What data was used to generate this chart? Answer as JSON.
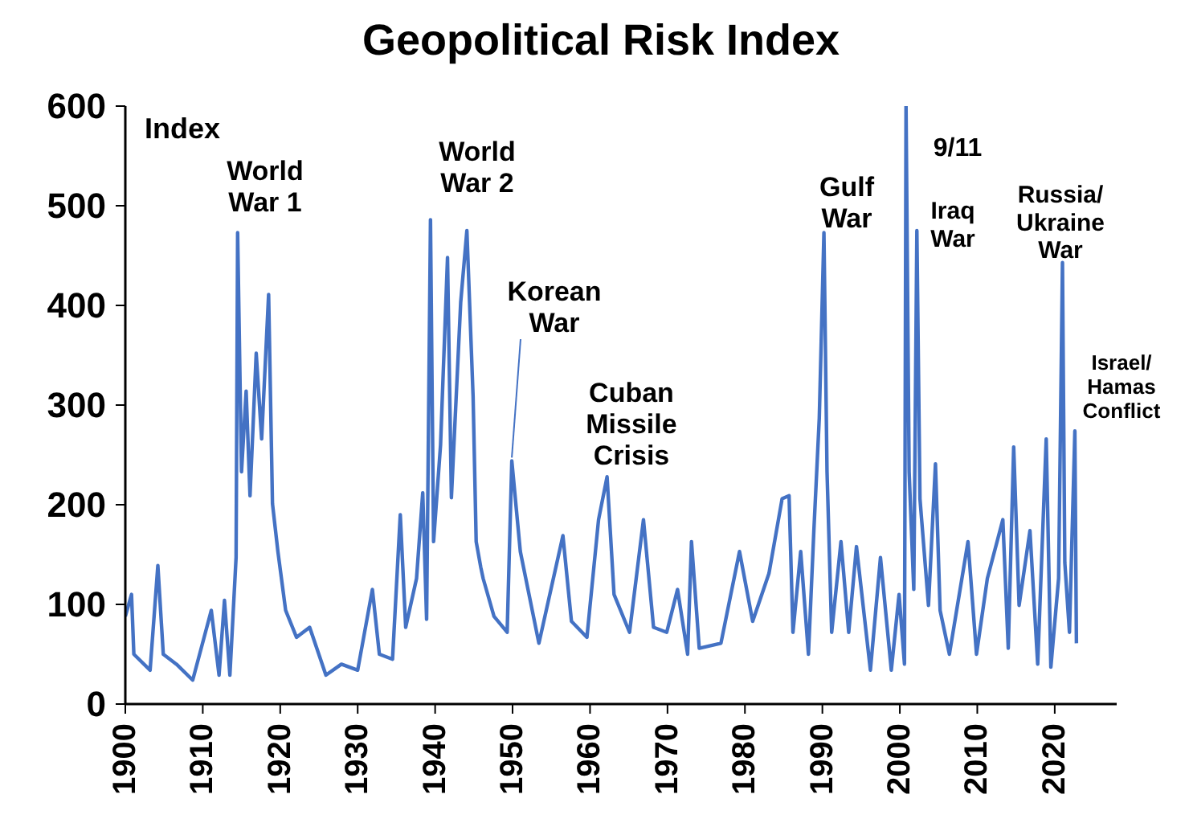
{
  "chart_data": {
    "type": "line",
    "title": "Geopolitical Risk Index",
    "ylabel": "Index",
    "x": [
      1900.0,
      1900.8,
      1901.1,
      1903.2,
      1904.2,
      1904.9,
      1906.6,
      1908.7,
      1911.1,
      1912.1,
      1912.8,
      1913.5,
      1914.3,
      1914.5,
      1915.0,
      1915.6,
      1916.1,
      1916.9,
      1917.6,
      1918.5,
      1919.0,
      1919.7,
      1920.7,
      1922.1,
      1923.8,
      1925.9,
      1927.9,
      1930.0,
      1931.9,
      1932.8,
      1934.5,
      1935.5,
      1936.2,
      1937.6,
      1938.4,
      1938.9,
      1939.4,
      1939.8,
      1940.7,
      1941.6,
      1942.1,
      1943.3,
      1944.1,
      1944.9,
      1945.3,
      1945.9,
      1946.2,
      1947.6,
      1949.3,
      1949.9,
      1951.0,
      1953.4,
      1956.5,
      1957.6,
      1959.6,
      1961.1,
      1962.2,
      1963.1,
      1965.1,
      1966.9,
      1968.2,
      1969.9,
      1971.3,
      1972.6,
      1973.1,
      1974.1,
      1976.9,
      1979.3,
      1981.0,
      1983.1,
      1984.8,
      1985.7,
      1986.2,
      1987.2,
      1988.2,
      1988.9,
      1989.6,
      1990.2,
      1990.6,
      1991.2,
      1992.4,
      1993.4,
      1994.4,
      1996.2,
      1997.5,
      1998.9,
      1999.9,
      2000.6,
      2000.8,
      2001.2,
      2001.8,
      2002.2,
      2002.6,
      2003.7,
      2004.6,
      2005.2,
      2006.4,
      2008.8,
      2009.9,
      2011.3,
      2013.3,
      2014.0,
      2014.7,
      2015.4,
      2016.8,
      2017.8,
      2018.9,
      2019.5,
      2020.5,
      2021.0,
      2021.3,
      2021.9,
      2022.6,
      2022.8
    ],
    "series": [
      {
        "color": "#4472c4",
        "values": [
          88,
          110,
          50,
          34,
          139,
          50,
          40,
          24,
          94,
          29,
          104,
          29,
          147,
          473,
          233,
          314,
          209,
          352,
          266,
          411,
          201,
          153,
          94,
          67,
          77,
          29,
          40,
          34,
          115,
          50,
          45,
          190,
          77,
          126,
          212,
          85,
          486,
          163,
          260,
          448,
          207,
          403,
          475,
          309,
          163,
          137,
          126,
          88,
          72,
          244,
          153,
          61,
          169,
          83,
          67,
          185,
          228,
          110,
          72,
          185,
          77,
          72,
          115,
          50,
          163,
          56,
          61,
          153,
          83,
          131,
          206,
          209,
          72,
          153,
          50,
          174,
          287,
          473,
          233,
          72,
          163,
          72,
          158,
          34,
          147,
          34,
          110,
          40,
          600,
          233,
          115,
          475,
          206,
          99,
          241,
          94,
          50,
          163,
          50,
          126,
          185,
          56,
          258,
          99,
          174,
          40,
          266,
          37,
          126,
          443,
          142,
          72,
          274,
          61
        ]
      }
    ],
    "xlim": [
      1900,
      2028
    ],
    "xticks": [
      1900,
      1910,
      1920,
      1930,
      1940,
      1950,
      1960,
      1970,
      1980,
      1990,
      2000,
      2010,
      2020
    ],
    "ylim": [
      0,
      600
    ],
    "yticks": [
      0,
      100,
      200,
      300,
      400,
      500,
      600
    ],
    "grid": false,
    "legend": false,
    "marker": "none",
    "line_style": "solid",
    "annotations": [
      "World\nWar 1",
      "World\nWar 2",
      {
        "text": "Korean\nWar",
        "x": 1949.9,
        "y": 244
      },
      "Cuban\nMissile\nCrisis",
      "Gulf\nWar",
      "9/11",
      "Iraq\nWar",
      "Russia/\nUkraine\nWar",
      "Israel/\nHamas\nConflict"
    ]
  }
}
